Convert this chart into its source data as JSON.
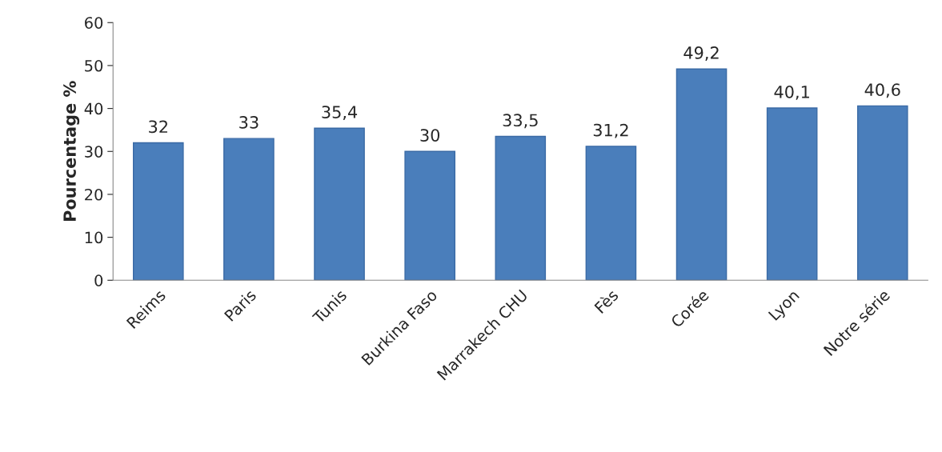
{
  "chart_data": {
    "type": "bar",
    "ylabel": "Pourcentage %",
    "categories": [
      "Reims",
      "Paris",
      "Tunis",
      "Burkina Faso",
      "Marrakech CHU",
      "Fès",
      "Corée",
      "Lyon",
      "Notre série"
    ],
    "values": [
      32,
      33,
      35.4,
      30,
      33.5,
      31.2,
      49.2,
      40.1,
      40.6
    ],
    "value_labels": [
      "32",
      "33",
      "35,4",
      "30",
      "33,5",
      "31,2",
      "49,2",
      "40,1",
      "40,6"
    ],
    "color": "#4a7ebb",
    "ylim": [
      0,
      60
    ],
    "yticks": [
      0,
      10,
      20,
      30,
      40,
      50,
      60
    ],
    "grid": false,
    "legend": false
  }
}
